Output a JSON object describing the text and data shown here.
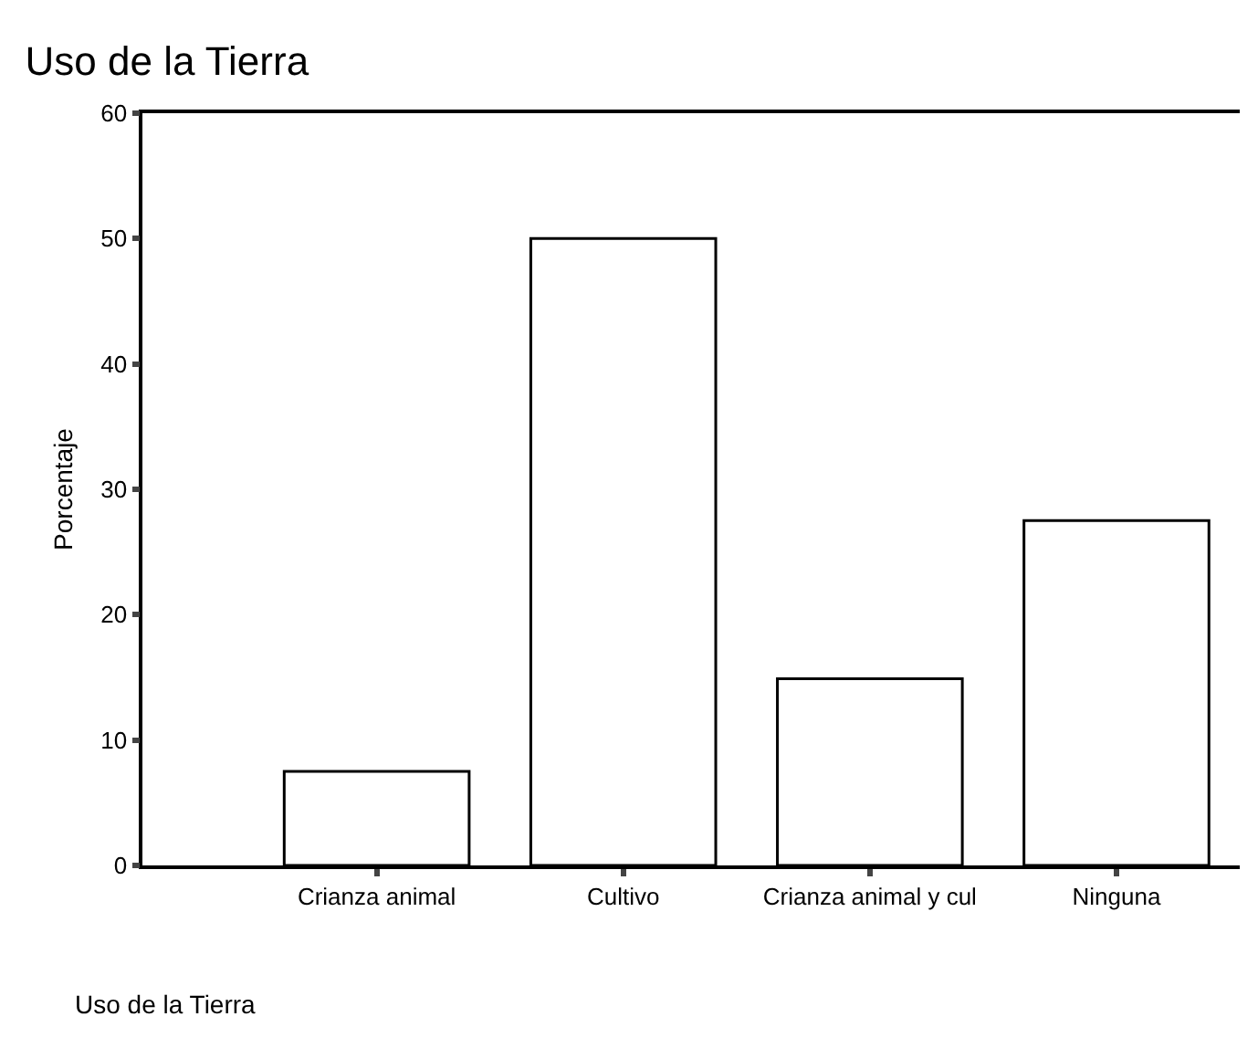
{
  "chart_data": {
    "type": "bar",
    "title": "Uso de la Tierra",
    "xlabel": "Uso de la Tierra",
    "ylabel": "Porcentaje",
    "categories": [
      "Crianza animal",
      "Cultivo",
      "Crianza animal y cul",
      "Ninguna"
    ],
    "values": [
      7.5,
      50,
      14.9,
      27.5
    ],
    "color": "#ffffff",
    "ylim": [
      0,
      60
    ],
    "yticks": [
      0,
      10,
      20,
      30,
      40,
      50,
      60
    ]
  }
}
